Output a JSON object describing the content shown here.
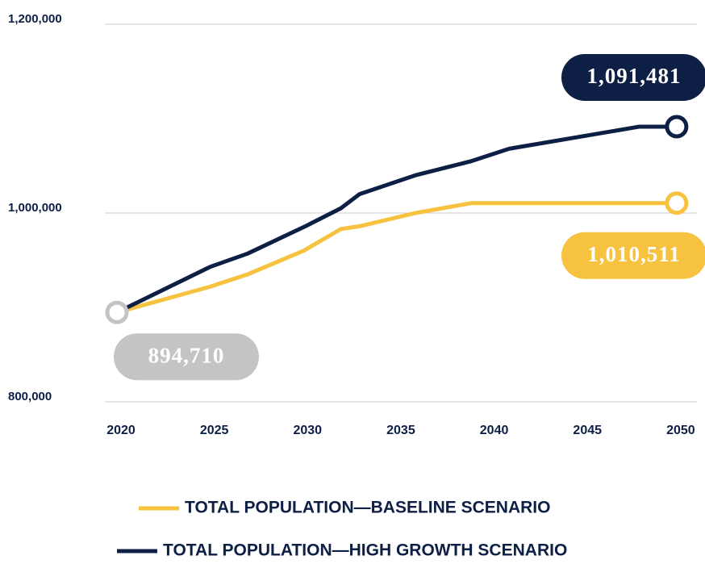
{
  "chart_data": {
    "type": "line",
    "x": [
      2020,
      2025,
      2027,
      2030,
      2032,
      2033,
      2036,
      2039,
      2041,
      2048,
      2050
    ],
    "xlim": [
      2020,
      2051
    ],
    "xticks": [
      2020,
      2025,
      2030,
      2035,
      2040,
      2045,
      2050
    ],
    "ylim": [
      800000,
      1200000
    ],
    "yticks": [
      {
        "value": 800000,
        "label": "800,000"
      },
      {
        "value": 1000000,
        "label": "1,000,000"
      },
      {
        "value": 1200000,
        "label": "1,200,000"
      }
    ],
    "grid": true,
    "start_color": "#c4c4c4",
    "series": [
      {
        "name": "TOTAL POPULATION—BASELINE SCENARIO",
        "color": "#f7c240",
        "values": [
          894710,
          922000,
          935000,
          960000,
          983000,
          986000,
          1000000,
          1010511,
          1010511,
          1010511,
          1010511
        ],
        "value_labels": [
          "894,710",
          null,
          null,
          null,
          null,
          null,
          null,
          null,
          null,
          null,
          "1,010,511"
        ]
      },
      {
        "name": "TOTAL POPULATION—HIGH GROWTH SCENARIO",
        "color": "#0e1f45",
        "values": [
          894710,
          943000,
          957000,
          985000,
          1005000,
          1020000,
          1040000,
          1055000,
          1068000,
          1091481,
          1091481
        ],
        "value_labels": [
          null,
          null,
          null,
          null,
          null,
          null,
          null,
          null,
          null,
          null,
          "1,091,481"
        ]
      }
    ]
  }
}
